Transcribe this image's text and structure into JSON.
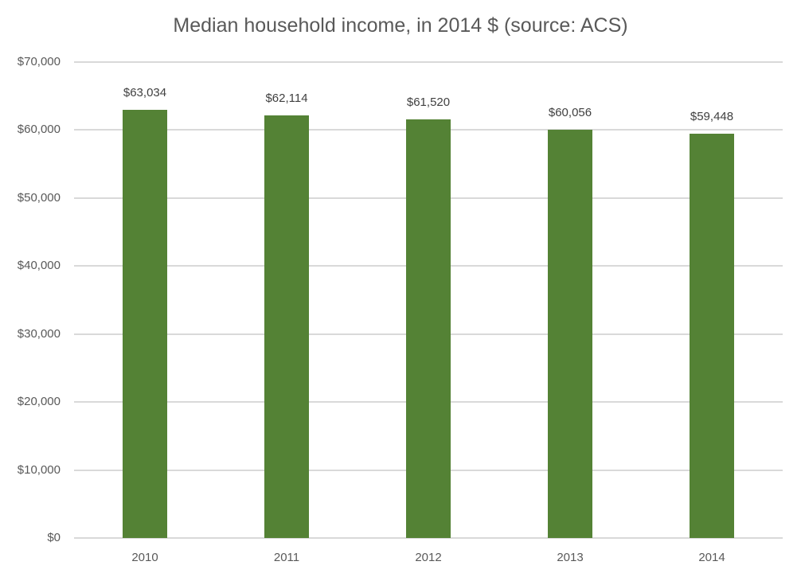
{
  "chart_data": {
    "type": "bar",
    "title": "Median household income, in 2014 $ (source: ACS)",
    "categories": [
      "2010",
      "2011",
      "2012",
      "2013",
      "2014"
    ],
    "values": [
      63034,
      62114,
      61520,
      60056,
      59448
    ],
    "data_labels": [
      "$63,034",
      "$62,114",
      "$61,520",
      "$60,056",
      "$59,448"
    ],
    "xlabel": "",
    "ylabel": "",
    "ylim": [
      0,
      70000
    ],
    "yticks": [
      0,
      10000,
      20000,
      30000,
      40000,
      50000,
      60000,
      70000
    ],
    "ytick_labels": [
      "$0",
      "$10,000",
      "$20,000",
      "$30,000",
      "$40,000",
      "$50,000",
      "$60,000",
      "$70,000"
    ],
    "grid": true,
    "legend": "none",
    "bar_color": "#548235"
  }
}
